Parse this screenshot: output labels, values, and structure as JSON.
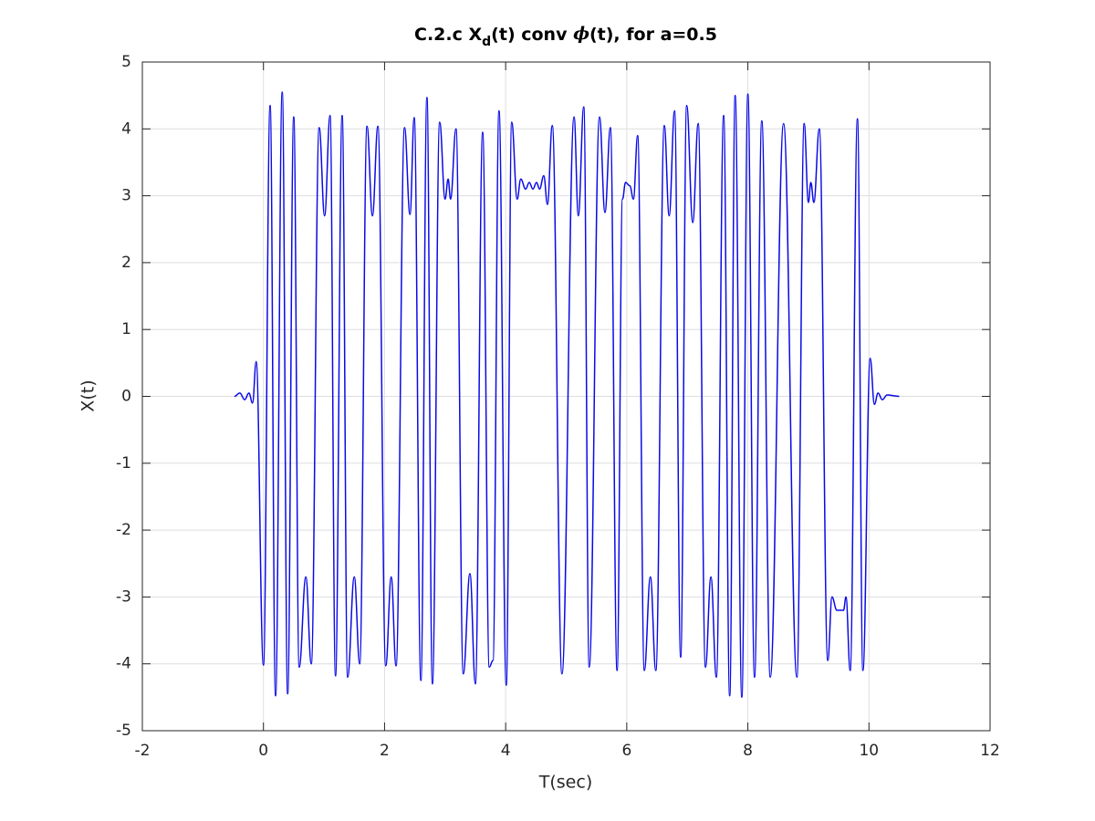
{
  "chart_data": {
    "type": "line",
    "title": [
      "C.2.c X",
      "d",
      "(t) conv ",
      "ϕ",
      "(t), for a=0.5"
    ],
    "x_label": "T(sec)",
    "y_label": "X(t)",
    "xlim": [
      -2,
      12
    ],
    "xticks": [
      -2,
      0,
      2,
      4,
      6,
      8,
      10,
      12
    ],
    "ylim": [
      -5,
      5
    ],
    "yticks": [
      -5,
      -4,
      -3,
      -2,
      -1,
      0,
      1,
      2,
      3,
      4,
      5
    ],
    "grid": true,
    "series": [
      {
        "name": "X(t)",
        "color": "#0a0ae6",
        "x": [
          -0.48,
          -0.39,
          -0.31,
          -0.24,
          -0.18,
          -0.12,
          0.0,
          0.11,
          0.2,
          0.31,
          0.4,
          0.5,
          0.59,
          0.7,
          0.79,
          0.92,
          1.01,
          1.1,
          1.19,
          1.3,
          1.39,
          1.5,
          1.59,
          1.71,
          1.8,
          1.89,
          2.02,
          2.11,
          2.19,
          2.33,
          2.42,
          2.49,
          2.6,
          2.7,
          2.79,
          2.91,
          3.0,
          3.05,
          3.09,
          3.18,
          3.3,
          3.41,
          3.5,
          3.62,
          3.73,
          3.79,
          3.89,
          4.01,
          4.1,
          4.19,
          4.25,
          4.33,
          4.39,
          4.45,
          4.51,
          4.56,
          4.63,
          4.69,
          4.77,
          4.93,
          5.13,
          5.2,
          5.29,
          5.38,
          5.55,
          5.64,
          5.73,
          5.84,
          5.93,
          5.98,
          6.05,
          6.11,
          6.18,
          6.29,
          6.39,
          6.48,
          6.62,
          6.7,
          6.79,
          6.89,
          6.99,
          7.09,
          7.18,
          7.3,
          7.39,
          7.48,
          7.6,
          7.7,
          7.79,
          7.9,
          8.0,
          8.11,
          8.23,
          8.37,
          8.59,
          8.81,
          8.93,
          9.0,
          9.04,
          9.09,
          9.18,
          9.32,
          9.39,
          9.47,
          9.58,
          9.62,
          9.69,
          9.81,
          9.9,
          10.02,
          10.09,
          10.15,
          10.22,
          10.3,
          10.5
        ],
        "values": [
          0,
          0.05,
          -0.05,
          0.05,
          -0.1,
          0.52,
          -4.02,
          4.35,
          -4.48,
          4.55,
          -4.45,
          4.18,
          -4.05,
          -2.7,
          -4.0,
          4.02,
          2.7,
          4.2,
          -4.18,
          4.2,
          -4.2,
          -2.7,
          -4.0,
          4.04,
          2.7,
          4.04,
          -4.03,
          -2.7,
          -4.03,
          4.02,
          2.72,
          4.17,
          -4.25,
          4.47,
          -4.3,
          4.1,
          2.95,
          3.25,
          2.95,
          4.0,
          -4.15,
          -2.65,
          -4.3,
          3.95,
          -4.05,
          -3.95,
          4.27,
          -4.32,
          4.1,
          2.95,
          3.25,
          3.1,
          3.2,
          3.1,
          3.2,
          3.1,
          3.3,
          2.87,
          4.05,
          -4.15,
          4.18,
          2.7,
          4.33,
          -4.05,
          4.18,
          2.75,
          4.02,
          -4.1,
          2.95,
          3.2,
          3.15,
          2.95,
          3.9,
          -4.1,
          -2.7,
          -4.1,
          4.05,
          2.7,
          4.27,
          -3.9,
          4.35,
          2.6,
          4.08,
          -4.05,
          -2.7,
          -4.2,
          4.2,
          -4.48,
          4.5,
          -4.5,
          4.52,
          -4.2,
          4.12,
          -4.2,
          4.08,
          -4.2,
          4.08,
          2.9,
          3.2,
          2.9,
          4.0,
          -3.95,
          -3.0,
          -3.2,
          -3.2,
          -3.0,
          -4.1,
          4.15,
          -4.1,
          0.57,
          -0.12,
          0.05,
          -0.05,
          0.02,
          0
        ]
      }
    ]
  }
}
